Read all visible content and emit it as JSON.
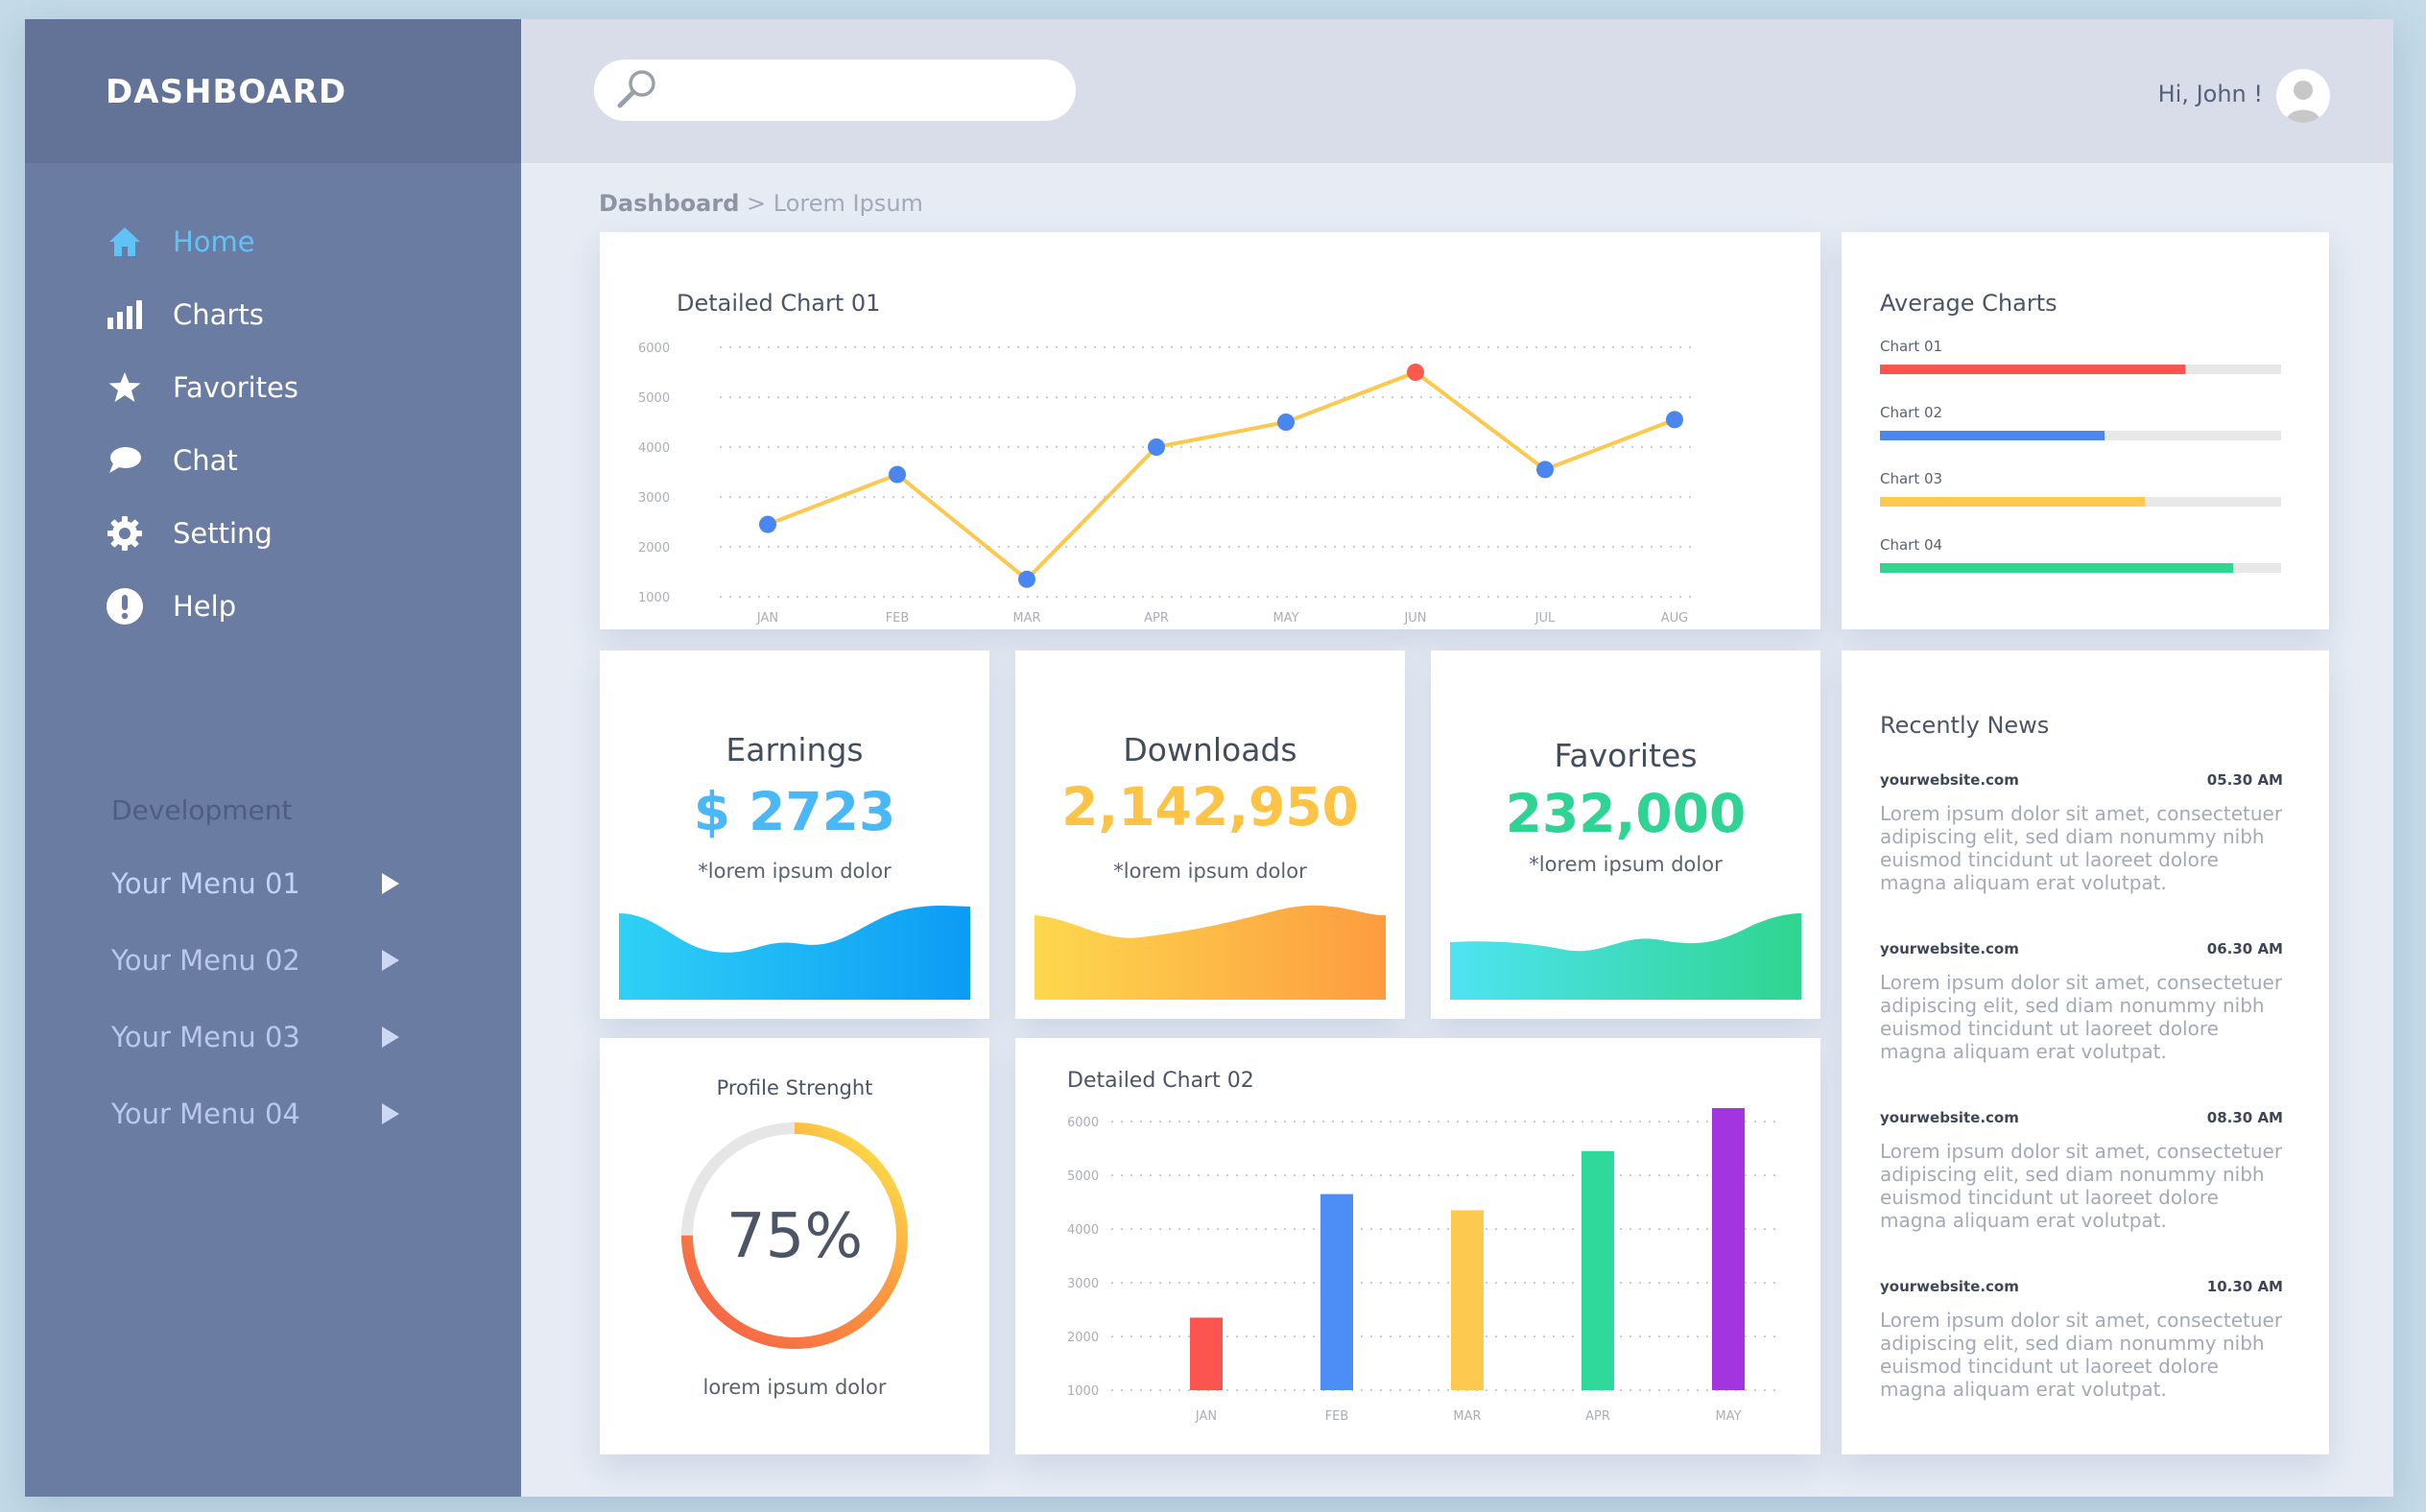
{
  "sidebar": {
    "brand": "DASHBOARD",
    "nav": [
      {
        "label": "Home",
        "icon": "home-icon",
        "active": true
      },
      {
        "label": "Charts",
        "icon": "bar-chart-icon"
      },
      {
        "label": "Favorites",
        "icon": "star-icon"
      },
      {
        "label": "Chat",
        "icon": "chat-bubble-icon"
      },
      {
        "label": "Setting",
        "icon": "gear-icon"
      },
      {
        "label": "Help",
        "icon": "exclamation-icon"
      }
    ],
    "section_label": "Development",
    "dev_menus": [
      "Your Menu 01",
      "Your Menu 02",
      "Your Menu 03",
      "Your Menu 04"
    ]
  },
  "header": {
    "search_placeholder": "",
    "greeting": "Hi, John !"
  },
  "breadcrumb": {
    "root": "Dashboard",
    "separator": " > ",
    "current": "Lorem Ipsum"
  },
  "chart1": {
    "title": "Detailed Chart 01",
    "chart_data": {
      "type": "line",
      "categories": [
        "JAN",
        "FEB",
        "MAR",
        "APR",
        "MAY",
        "JUN",
        "JUL",
        "AUG"
      ],
      "values": [
        2450,
        3450,
        1350,
        4000,
        4500,
        5500,
        3550,
        4550
      ],
      "highlight_index": 5,
      "yticks": [
        6000,
        5000,
        4000,
        3000,
        2000,
        1000
      ],
      "ylim": [
        1000,
        6000
      ],
      "line_color": "#fcc84e",
      "point_color": "#4a86f0",
      "highlight_color": "#fc5a4d"
    }
  },
  "average": {
    "title": "Average Charts",
    "items": [
      {
        "label": "Chart 01",
        "value": 0.76,
        "color": "#fc5550"
      },
      {
        "label": "Chart 02",
        "value": 0.56,
        "color": "#4c87ef"
      },
      {
        "label": "Chart 03",
        "value": 0.66,
        "color": "#fdca4f"
      },
      {
        "label": "Chart 04",
        "value": 0.88,
        "color": "#2fd68f"
      }
    ]
  },
  "stats": [
    {
      "title": "Earnings",
      "value": "$ 2723",
      "sub": "*lorem ipsum dolor",
      "color": "#4ab8f6"
    },
    {
      "title": "Downloads",
      "value": "2,142,950",
      "sub": "*lorem ipsum dolor",
      "color": "#fcc345"
    },
    {
      "title": "Favorites",
      "value": "232,000",
      "sub": "*lorem ipsum dolor",
      "color": "#2fd494"
    }
  ],
  "profile": {
    "title": "Profile Strenght",
    "value_text": "75%",
    "value": 0.75,
    "sub": "lorem ipsum dolor"
  },
  "chart2": {
    "title": "Detailed Chart 02",
    "chart_data": {
      "type": "bar",
      "categories": [
        "JAN",
        "FEB",
        "MAR",
        "APR",
        "MAY"
      ],
      "values": [
        2350,
        4650,
        4350,
        5450,
        6250
      ],
      "colors": [
        "#fc5550",
        "#4c8ef6",
        "#fdca4f",
        "#2fd99b",
        "#a335e0"
      ],
      "yticks": [
        6000,
        5000,
        4000,
        3000,
        2000,
        1000
      ],
      "ylim": [
        1000,
        6000
      ]
    }
  },
  "news": {
    "title": "Recently News",
    "items": [
      {
        "site": "yourwebsite.com",
        "time": "05.30 AM",
        "text": "Lorem ipsum dolor sit amet, consectetuer adipiscing elit, sed diam nonummy nibh euismod tincidunt ut laoreet dolore magna aliquam erat volutpat."
      },
      {
        "site": "yourwebsite.com",
        "time": "06.30 AM",
        "text": "Lorem ipsum dolor sit amet, consectetuer adipiscing elit, sed diam nonummy nibh euismod tincidunt ut laoreet dolore magna aliquam erat volutpat."
      },
      {
        "site": "yourwebsite.com",
        "time": "08.30 AM",
        "text": "Lorem ipsum dolor sit amet, consectetuer adipiscing elit, sed diam nonummy nibh euismod tincidunt ut laoreet dolore magna aliquam erat volutpat."
      },
      {
        "site": "yourwebsite.com",
        "time": "10.30 AM",
        "text": "Lorem ipsum dolor sit amet, consectetuer adipiscing elit, sed diam nonummy nibh euismod tincidunt ut laoreet dolore magna aliquam erat volutpat."
      }
    ]
  }
}
